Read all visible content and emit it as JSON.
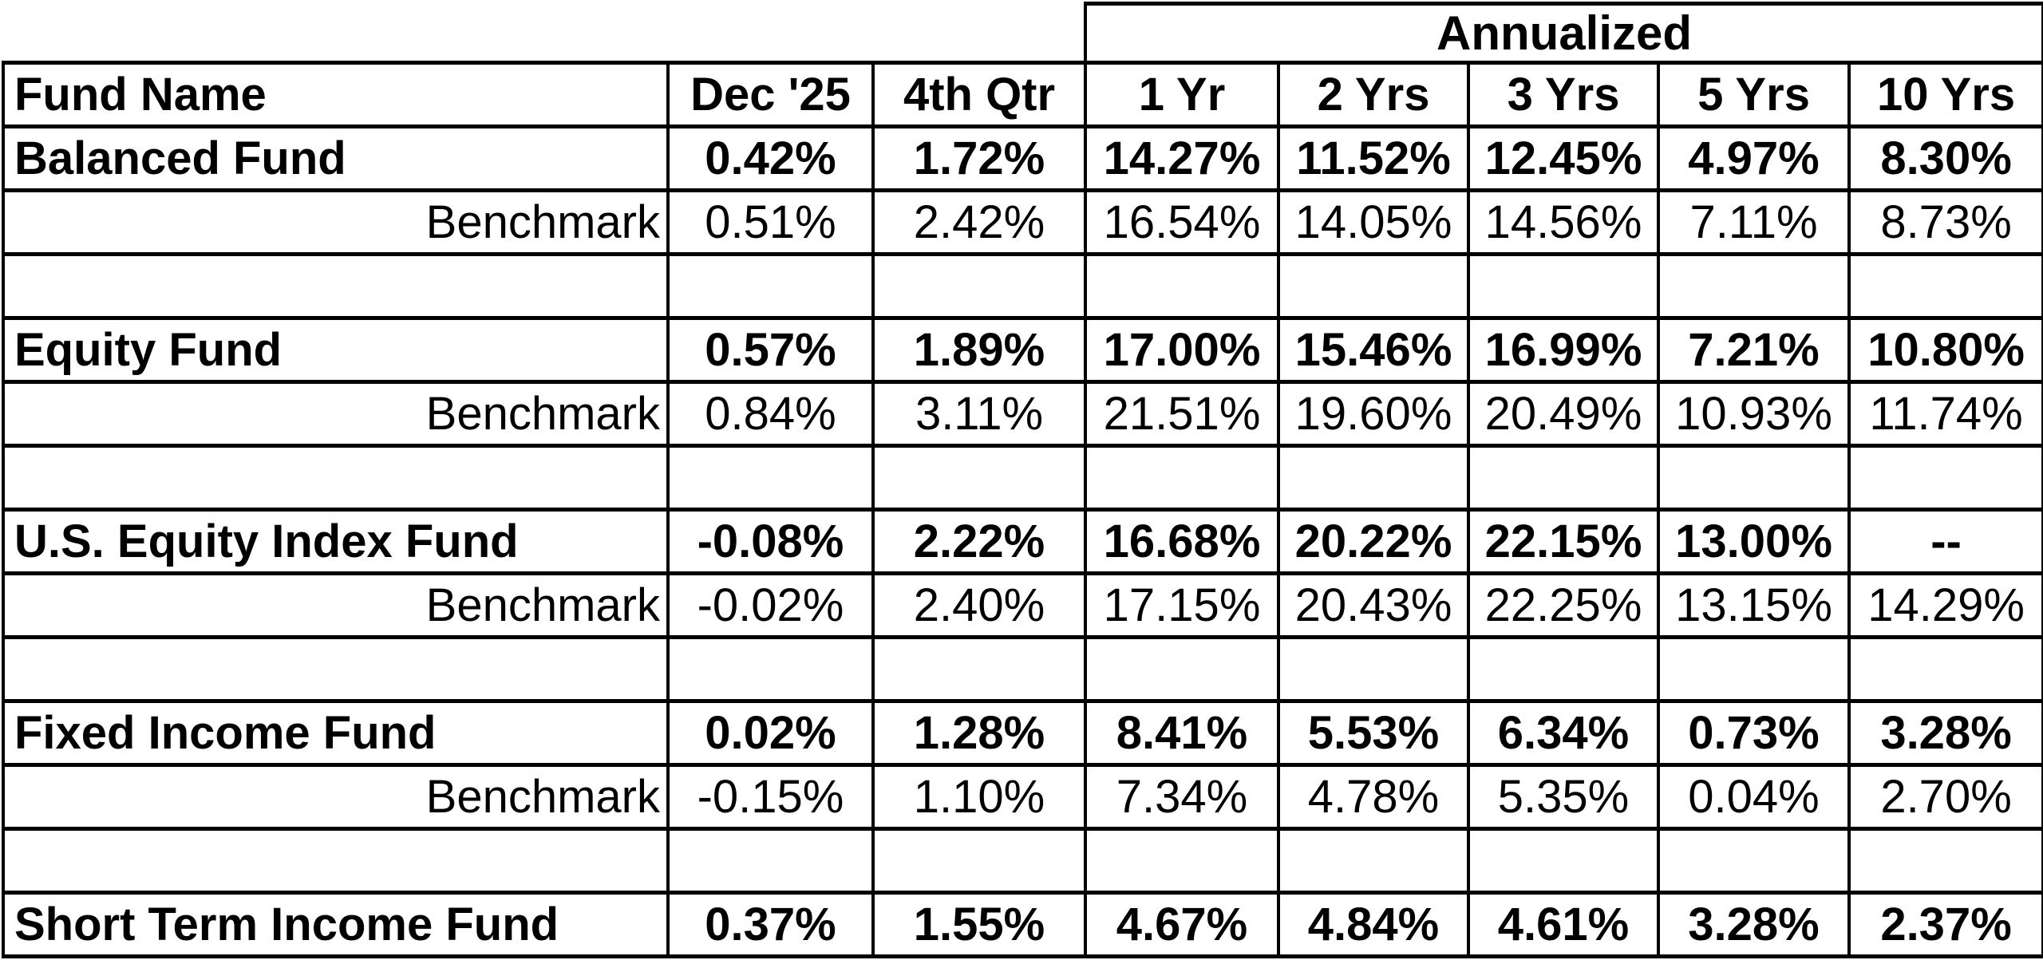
{
  "table": {
    "annualized_label": "Annualized",
    "columns": [
      "Fund Name",
      "Dec '25",
      "4th Qtr",
      "1 Yr",
      "2 Yrs",
      "3 Yrs",
      "5 Yrs",
      "10 Yrs"
    ],
    "rows": [
      {
        "type": "fund",
        "name": "Balanced Fund",
        "values": [
          "0.42%",
          "1.72%",
          "14.27%",
          "11.52%",
          "12.45%",
          "4.97%",
          "8.30%"
        ]
      },
      {
        "type": "benchmark",
        "name": "Benchmark",
        "values": [
          "0.51%",
          "2.42%",
          "16.54%",
          "14.05%",
          "14.56%",
          "7.11%",
          "8.73%"
        ]
      },
      {
        "type": "spacer"
      },
      {
        "type": "fund",
        "name": "Equity Fund",
        "values": [
          "0.57%",
          "1.89%",
          "17.00%",
          "15.46%",
          "16.99%",
          "7.21%",
          "10.80%"
        ]
      },
      {
        "type": "benchmark",
        "name": "Benchmark",
        "values": [
          "0.84%",
          "3.11%",
          "21.51%",
          "19.60%",
          "20.49%",
          "10.93%",
          "11.74%"
        ]
      },
      {
        "type": "spacer"
      },
      {
        "type": "fund",
        "name": "U.S. Equity Index Fund",
        "values": [
          "-0.08%",
          "2.22%",
          "16.68%",
          "20.22%",
          "22.15%",
          "13.00%",
          "--"
        ]
      },
      {
        "type": "benchmark",
        "name": "Benchmark",
        "values": [
          "-0.02%",
          "2.40%",
          "17.15%",
          "20.43%",
          "22.25%",
          "13.15%",
          "14.29%"
        ]
      },
      {
        "type": "spacer"
      },
      {
        "type": "fund",
        "name": "Fixed Income Fund",
        "values": [
          "0.02%",
          "1.28%",
          "8.41%",
          "5.53%",
          "6.34%",
          "0.73%",
          "3.28%"
        ]
      },
      {
        "type": "benchmark",
        "name": "Benchmark",
        "values": [
          "-0.15%",
          "1.10%",
          "7.34%",
          "4.78%",
          "5.35%",
          "0.04%",
          "2.70%"
        ]
      },
      {
        "type": "spacer"
      },
      {
        "type": "fund",
        "name": "Short Term Income Fund",
        "values": [
          "0.37%",
          "1.55%",
          "4.67%",
          "4.84%",
          "4.61%",
          "3.28%",
          "2.37%"
        ]
      }
    ]
  }
}
